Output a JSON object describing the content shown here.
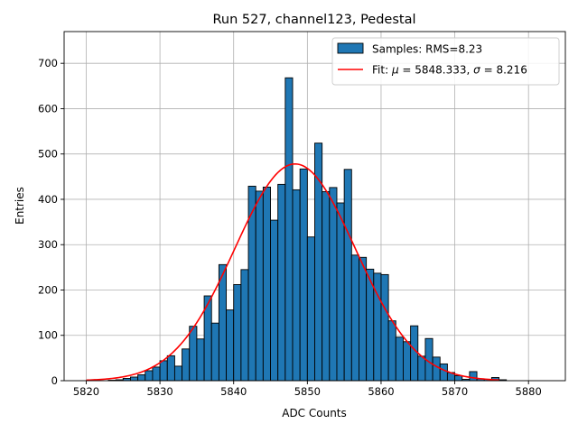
{
  "chart_data": {
    "type": "bar",
    "title": "Run 527, channel123, Pedestal",
    "xlabel": "ADC Counts",
    "ylabel": "Entries",
    "xlim": [
      5817,
      5885
    ],
    "ylim": [
      0,
      770
    ],
    "xticks": [
      5820,
      5830,
      5840,
      5850,
      5860,
      5870,
      5880
    ],
    "yticks": [
      0,
      100,
      200,
      300,
      400,
      500,
      600,
      700
    ],
    "grid": true,
    "legend_position": "top-right",
    "histogram": {
      "name": "Samples: RMS=8.23",
      "color": "#1f77b4",
      "edgecolor": "#000000",
      "bin_width": 1,
      "bin_start": 5820,
      "counts": [
        0,
        0,
        0,
        1,
        2,
        5,
        8,
        13,
        22,
        30,
        44,
        55,
        32,
        70,
        120,
        92,
        187,
        127,
        256,
        156,
        212,
        245,
        429,
        418,
        427,
        354,
        433,
        668,
        421,
        467,
        317,
        524,
        417,
        426,
        392,
        466,
        277,
        272,
        246,
        237,
        234,
        132,
        96,
        86,
        121,
        54,
        93,
        52,
        37,
        18,
        11,
        3,
        20,
        4,
        3,
        7,
        2
      ]
    },
    "fit": {
      "name_prefix": "Fit: ",
      "mu_label": "5848.333",
      "sigma_label": "8.216",
      "mu": 5848.333,
      "sigma": 8.216,
      "amplitude": 478,
      "range": [
        5820,
        5876
      ],
      "color": "#ff0000"
    }
  }
}
